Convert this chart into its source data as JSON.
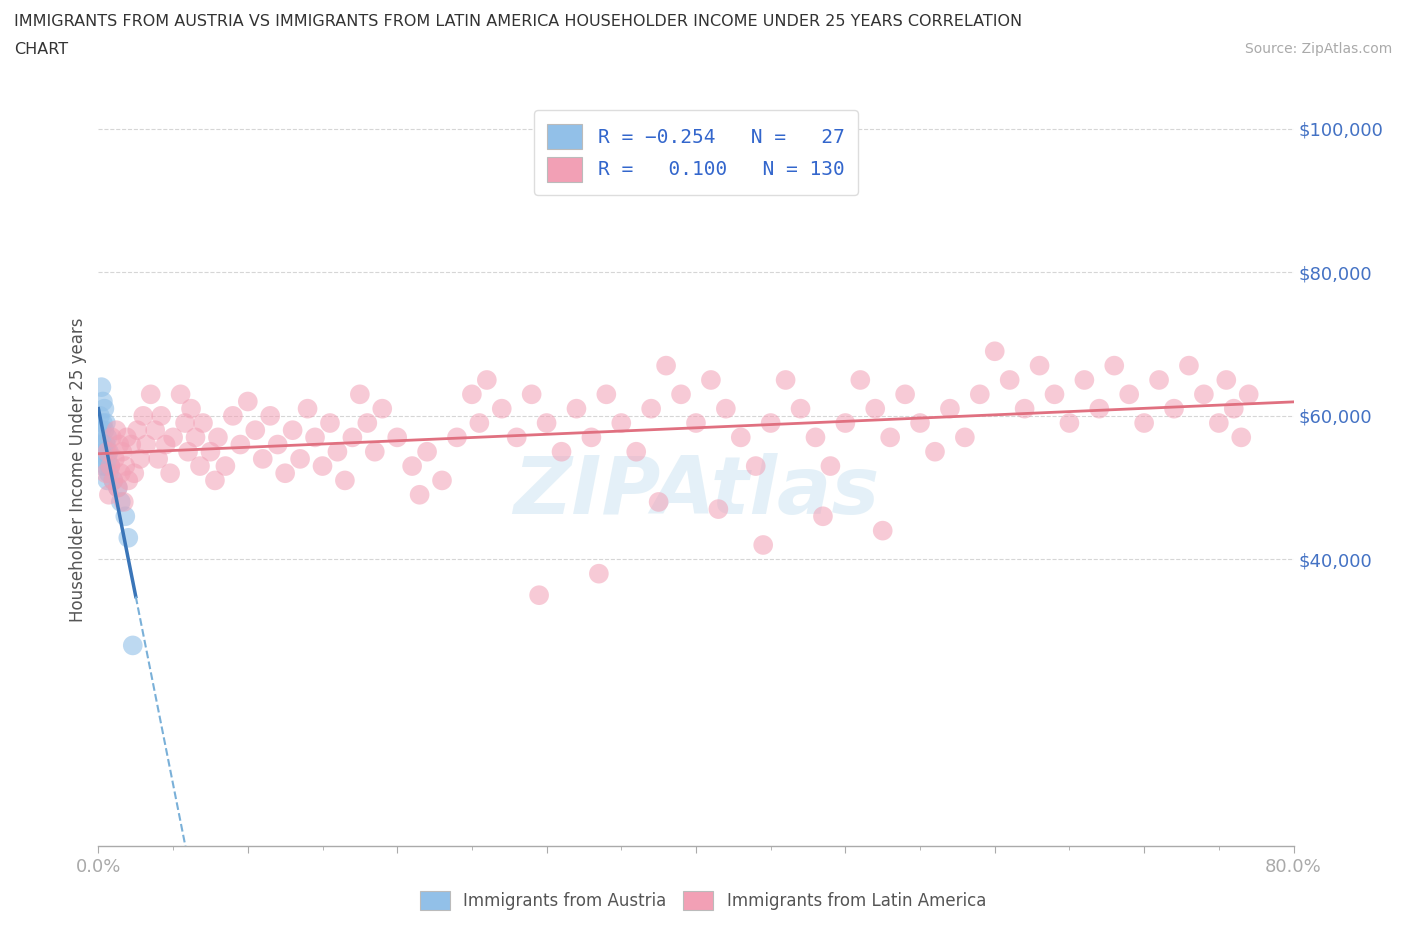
{
  "title_line1": "IMMIGRANTS FROM AUSTRIA VS IMMIGRANTS FROM LATIN AMERICA HOUSEHOLDER INCOME UNDER 25 YEARS CORRELATION",
  "title_line2": "CHART",
  "source_text": "Source: ZipAtlas.com",
  "ylabel": "Householder Income Under 25 years",
  "xmin": 0.0,
  "xmax": 0.8,
  "ymin": 0,
  "ymax": 105000,
  "austria_color": "#92c0e8",
  "latin_color": "#f2a0b5",
  "austria_line_color_solid": "#3a75b8",
  "austria_line_color_dash": "#7ab0d8",
  "latin_line_color": "#e07080",
  "legend_austria_label": "Immigrants from Austria",
  "legend_latin_label": "Immigrants from Latin America",
  "austria_R": -0.254,
  "austria_N": 27,
  "latin_R": 0.1,
  "latin_N": 130,
  "watermark": "ZIPAtlas",
  "bg_color": "#ffffff",
  "grid_color": "#cccccc",
  "axis_label_color": "#4472c4",
  "title_color": "#333333",
  "austria_x": [
    0.001,
    0.001,
    0.002,
    0.002,
    0.002,
    0.003,
    0.003,
    0.003,
    0.003,
    0.004,
    0.004,
    0.004,
    0.005,
    0.005,
    0.005,
    0.006,
    0.006,
    0.006,
    0.007,
    0.007,
    0.008,
    0.01,
    0.013,
    0.015,
    0.018,
    0.02,
    0.023
  ],
  "austria_y": [
    60000,
    56000,
    64000,
    58000,
    54000,
    62000,
    59000,
    56000,
    53000,
    61000,
    58000,
    55000,
    59000,
    56000,
    53000,
    57000,
    54000,
    51000,
    55000,
    52000,
    53000,
    51000,
    50000,
    48000,
    46000,
    43000,
    28000
  ],
  "latin_x": [
    0.005,
    0.006,
    0.007,
    0.008,
    0.009,
    0.01,
    0.011,
    0.012,
    0.013,
    0.014,
    0.015,
    0.016,
    0.017,
    0.018,
    0.019,
    0.02,
    0.022,
    0.024,
    0.026,
    0.028,
    0.03,
    0.032,
    0.035,
    0.038,
    0.04,
    0.042,
    0.045,
    0.048,
    0.05,
    0.055,
    0.058,
    0.06,
    0.062,
    0.065,
    0.068,
    0.07,
    0.075,
    0.078,
    0.08,
    0.085,
    0.09,
    0.095,
    0.1,
    0.105,
    0.11,
    0.115,
    0.12,
    0.125,
    0.13,
    0.135,
    0.14,
    0.145,
    0.15,
    0.155,
    0.16,
    0.165,
    0.17,
    0.175,
    0.18,
    0.185,
    0.19,
    0.2,
    0.21,
    0.215,
    0.22,
    0.23,
    0.24,
    0.25,
    0.255,
    0.26,
    0.27,
    0.28,
    0.29,
    0.3,
    0.31,
    0.32,
    0.33,
    0.34,
    0.35,
    0.36,
    0.37,
    0.38,
    0.39,
    0.4,
    0.41,
    0.42,
    0.43,
    0.44,
    0.45,
    0.46,
    0.47,
    0.48,
    0.49,
    0.5,
    0.51,
    0.52,
    0.53,
    0.54,
    0.55,
    0.56,
    0.57,
    0.58,
    0.59,
    0.6,
    0.61,
    0.62,
    0.63,
    0.64,
    0.65,
    0.66,
    0.67,
    0.68,
    0.69,
    0.7,
    0.71,
    0.72,
    0.73,
    0.74,
    0.75,
    0.755,
    0.76,
    0.765,
    0.77,
    0.335,
    0.295,
    0.445,
    0.375,
    0.415,
    0.525,
    0.485
  ],
  "latin_y": [
    52000,
    55000,
    49000,
    53000,
    57000,
    51000,
    54000,
    58000,
    50000,
    56000,
    52000,
    55000,
    48000,
    53000,
    57000,
    51000,
    56000,
    52000,
    58000,
    54000,
    60000,
    56000,
    63000,
    58000,
    54000,
    60000,
    56000,
    52000,
    57000,
    63000,
    59000,
    55000,
    61000,
    57000,
    53000,
    59000,
    55000,
    51000,
    57000,
    53000,
    60000,
    56000,
    62000,
    58000,
    54000,
    60000,
    56000,
    52000,
    58000,
    54000,
    61000,
    57000,
    53000,
    59000,
    55000,
    51000,
    57000,
    63000,
    59000,
    55000,
    61000,
    57000,
    53000,
    49000,
    55000,
    51000,
    57000,
    63000,
    59000,
    65000,
    61000,
    57000,
    63000,
    59000,
    55000,
    61000,
    57000,
    63000,
    59000,
    55000,
    61000,
    67000,
    63000,
    59000,
    65000,
    61000,
    57000,
    53000,
    59000,
    65000,
    61000,
    57000,
    53000,
    59000,
    65000,
    61000,
    57000,
    63000,
    59000,
    55000,
    61000,
    57000,
    63000,
    69000,
    65000,
    61000,
    67000,
    63000,
    59000,
    65000,
    61000,
    67000,
    63000,
    59000,
    65000,
    61000,
    67000,
    63000,
    59000,
    65000,
    61000,
    57000,
    63000,
    38000,
    35000,
    42000,
    48000,
    47000,
    44000,
    46000
  ]
}
